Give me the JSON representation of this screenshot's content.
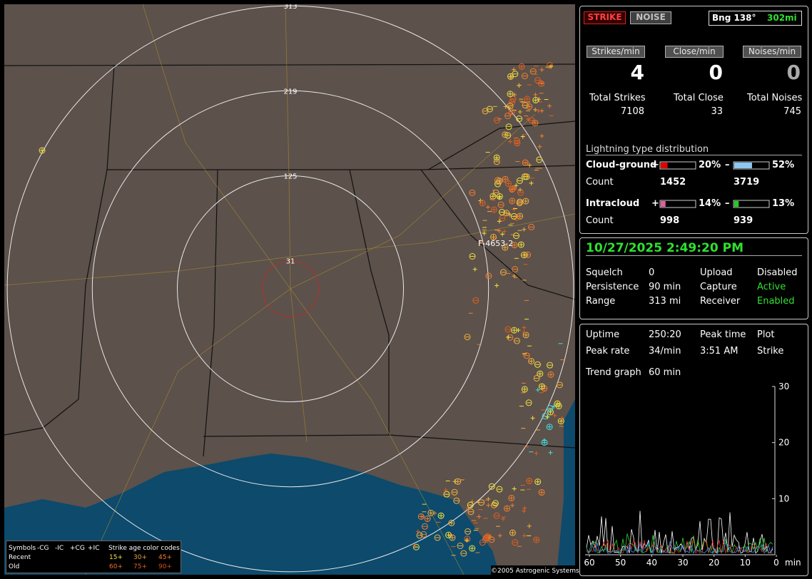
{
  "map": {
    "ring_labels": [
      313,
      219,
      125,
      31
    ],
    "station_label": "F-4653-2",
    "copyright": "©2005 Astrogenic Systems",
    "legend": {
      "symbols_label": "Symbols",
      "columns": [
        "-CG",
        "-IC",
        "+CG",
        "+IC"
      ],
      "age_title": "Strike age color codes",
      "rows": [
        {
          "name": "Recent",
          "ages": [
            "15+",
            "30+",
            "45+"
          ]
        },
        {
          "name": "Old",
          "ages": [
            "60+",
            "75+",
            "90+"
          ]
        }
      ]
    }
  },
  "header": {
    "strike": "STRIKE",
    "noise": "NOISE",
    "bearing": "Bng 138°",
    "distance": "302mi"
  },
  "rates": [
    {
      "label": "Strikes/min",
      "value": 4,
      "total_label": "Total Strikes",
      "total": 7108
    },
    {
      "label": "Close/min",
      "value": 0,
      "total_label": "Total Close",
      "total": 33
    },
    {
      "label": "Noises/min",
      "value": 0,
      "total_label": "Total Noises",
      "total": 745
    }
  ],
  "distribution": {
    "title": "Lightning type distribution",
    "count_label": "Count",
    "rows": [
      {
        "name": "Cloud-ground",
        "plus_sign": "+",
        "plus_value": 20,
        "plus_label": "20%",
        "plus_color": "#e00000",
        "minus_sign": "–",
        "minus_value": 52,
        "minus_label": "52%",
        "minus_color": "#8cc8f0",
        "plus_count": 1452,
        "minus_count": 3719
      },
      {
        "name": "Intracloud",
        "plus_sign": "+",
        "plus_value": 14,
        "plus_label": "14%",
        "plus_color": "#e060a0",
        "minus_sign": "–",
        "minus_value": 13,
        "minus_label": "13%",
        "minus_color": "#20d020",
        "plus_count": 998,
        "minus_count": 939
      }
    ]
  },
  "status": {
    "datetime": "10/27/2025 2:49:20 PM",
    "rows": [
      [
        "Squelch",
        "0",
        "Upload",
        "Disabled"
      ],
      [
        "Persistence",
        "90 min",
        "Capture",
        "Active"
      ],
      [
        "Range",
        "313 mi",
        "Receiver",
        "Enabled"
      ]
    ]
  },
  "stats": {
    "rows": [
      [
        "Uptime",
        "250:20",
        "Peak time",
        "Plot"
      ],
      [
        "Peak rate",
        "34/min",
        "3:51 AM",
        "Strike"
      ]
    ],
    "trend_label": "Trend graph",
    "trend_window": "60 min"
  },
  "trend_graph": {
    "ylim": [
      0,
      30
    ],
    "yticks": [
      10,
      20,
      30
    ],
    "xlim": [
      60,
      0
    ],
    "xticks": [
      60,
      50,
      40,
      30,
      20,
      10,
      0
    ],
    "x_unit": "min"
  }
}
